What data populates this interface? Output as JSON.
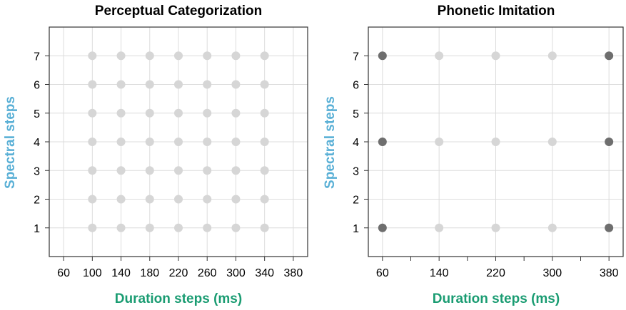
{
  "colors": {
    "ylabel": "#5ab0d6",
    "xlabel": "#1a9c72",
    "grid": "#dcdcdc",
    "frame": "#333333",
    "point_light": "#d6d6d6",
    "point_dark": "#6e6e6e"
  },
  "chart_data": [
    {
      "type": "scatter",
      "title": "Perceptual Categorization",
      "xlabel": "Duration steps (ms)",
      "ylabel": "Spectral steps",
      "x_ticks": [
        60,
        100,
        140,
        180,
        220,
        260,
        300,
        340,
        380
      ],
      "y_ticks": [
        1,
        2,
        3,
        4,
        5,
        6,
        7
      ],
      "xlim": [
        40,
        400
      ],
      "ylim": [
        0,
        8
      ],
      "grid": true,
      "series": [
        {
          "points": [
            [
              100,
              1
            ],
            [
              140,
              1
            ],
            [
              180,
              1
            ],
            [
              220,
              1
            ],
            [
              260,
              1
            ],
            [
              300,
              1
            ],
            [
              340,
              1
            ],
            [
              100,
              2
            ],
            [
              140,
              2
            ],
            [
              180,
              2
            ],
            [
              220,
              2
            ],
            [
              260,
              2
            ],
            [
              300,
              2
            ],
            [
              340,
              2
            ],
            [
              100,
              3
            ],
            [
              140,
              3
            ],
            [
              180,
              3
            ],
            [
              220,
              3
            ],
            [
              260,
              3
            ],
            [
              300,
              3
            ],
            [
              340,
              3
            ],
            [
              100,
              4
            ],
            [
              140,
              4
            ],
            [
              180,
              4
            ],
            [
              220,
              4
            ],
            [
              260,
              4
            ],
            [
              300,
              4
            ],
            [
              340,
              4
            ],
            [
              100,
              5
            ],
            [
              140,
              5
            ],
            [
              180,
              5
            ],
            [
              220,
              5
            ],
            [
              260,
              5
            ],
            [
              300,
              5
            ],
            [
              340,
              5
            ],
            [
              100,
              6
            ],
            [
              140,
              6
            ],
            [
              180,
              6
            ],
            [
              220,
              6
            ],
            [
              260,
              6
            ],
            [
              300,
              6
            ],
            [
              340,
              6
            ],
            [
              100,
              7
            ],
            [
              140,
              7
            ],
            [
              180,
              7
            ],
            [
              220,
              7
            ],
            [
              260,
              7
            ],
            [
              300,
              7
            ],
            [
              340,
              7
            ]
          ],
          "color": "#d6d6d6"
        }
      ]
    },
    {
      "type": "scatter",
      "title": "Phonetic Imitation",
      "xlabel": "Duration steps (ms)",
      "ylabel": "Spectral steps",
      "x_ticks": [
        60,
        140,
        220,
        300,
        380
      ],
      "x_minor_ticks": [
        100,
        180,
        260,
        340
      ],
      "y_ticks": [
        1,
        2,
        3,
        4,
        5,
        6,
        7
      ],
      "xlim": [
        40,
        400
      ],
      "ylim": [
        0,
        8
      ],
      "grid": true,
      "series": [
        {
          "points": [
            [
              140,
              1
            ],
            [
              220,
              1
            ],
            [
              300,
              1
            ],
            [
              140,
              4
            ],
            [
              220,
              4
            ],
            [
              300,
              4
            ],
            [
              140,
              7
            ],
            [
              220,
              7
            ],
            [
              300,
              7
            ]
          ],
          "color": "#d6d6d6"
        },
        {
          "points": [
            [
              60,
              1
            ],
            [
              380,
              1
            ],
            [
              60,
              4
            ],
            [
              380,
              4
            ],
            [
              60,
              7
            ],
            [
              380,
              7
            ]
          ],
          "color": "#6e6e6e"
        }
      ]
    }
  ]
}
